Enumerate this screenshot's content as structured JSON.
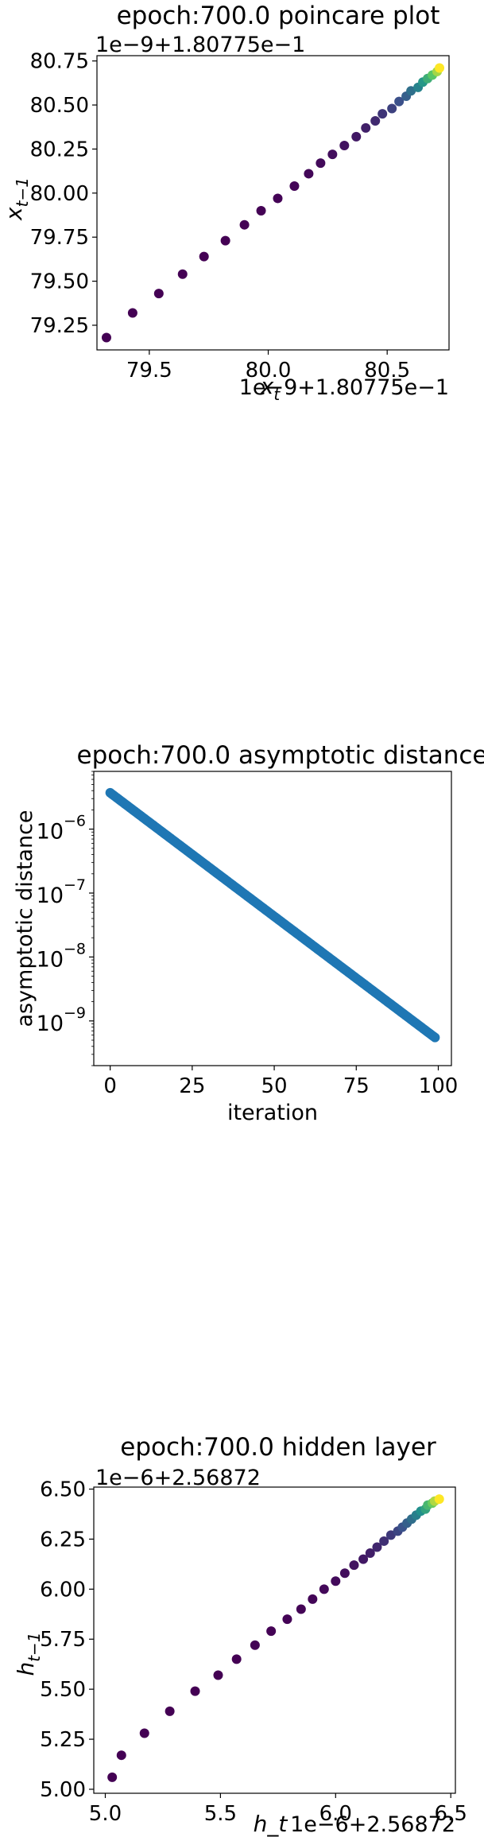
{
  "chart_data": [
    {
      "type": "scatter",
      "title": "epoch:700.0 poincare plot",
      "xlabel": "x_t",
      "ylabel": "x_{t-1}",
      "x_offset_label": "1e−9+1.80775e−1",
      "y_offset_label": "1e−9+1.80775e−1",
      "xlim": [
        79.28,
        80.76
      ],
      "ylim": [
        79.11,
        80.78
      ],
      "xticks": [
        79.5,
        80.0,
        80.5
      ],
      "xtick_labels": [
        "79.5",
        "80.0",
        "80.5"
      ],
      "yticks": [
        79.25,
        79.5,
        79.75,
        80.0,
        80.25,
        80.5,
        80.75
      ],
      "ytick_labels": [
        "79.25",
        "79.50",
        "79.75",
        "80.00",
        "80.25",
        "80.50",
        "80.75"
      ],
      "colormap": [
        "#440154",
        "#3b528b",
        "#21918c",
        "#5ec962",
        "#fde725"
      ],
      "points": {
        "x": [
          79.32,
          79.43,
          79.54,
          79.64,
          79.73,
          79.82,
          79.9,
          79.97,
          80.04,
          80.11,
          80.17,
          80.22,
          80.27,
          80.32,
          80.37,
          80.41,
          80.45,
          80.48,
          80.52,
          80.55,
          80.58,
          80.6,
          80.63,
          80.65,
          80.67,
          80.69,
          80.71,
          80.72
        ],
        "y": [
          79.18,
          79.32,
          79.43,
          79.54,
          79.64,
          79.73,
          79.82,
          79.9,
          79.97,
          80.04,
          80.11,
          80.17,
          80.22,
          80.27,
          80.32,
          80.37,
          80.41,
          80.45,
          80.48,
          80.52,
          80.55,
          80.58,
          80.6,
          80.63,
          80.65,
          80.67,
          80.69,
          80.71
        ]
      },
      "grid": false
    },
    {
      "type": "scatter",
      "title": "epoch:700.0 asymptotic distance",
      "xlabel": "iteration",
      "ylabel": "asymptotic distance",
      "yscale": "log",
      "xlim": [
        -5,
        104
      ],
      "ylim": [
        2e-10,
        8e-06
      ],
      "xticks": [
        0,
        25,
        50,
        75,
        100
      ],
      "xtick_labels": [
        "0",
        "25",
        "50",
        "75",
        "100"
      ],
      "yticks": [
        1e-06,
        1e-07,
        1e-08,
        1e-09
      ],
      "ytick_labels": [
        "10",
        "10",
        "10",
        "10"
      ],
      "ytick_exponents": [
        "−6",
        "−7",
        "−8",
        "−9"
      ],
      "color": "#1f77b4",
      "points": {
        "x_start": 0,
        "x_end": 99,
        "y_start": 3.7e-06,
        "y_end": 5.5e-10
      },
      "grid": false
    },
    {
      "type": "scatter",
      "title": "epoch:700.0 hidden layer",
      "xlabel": "h_t",
      "ylabel": "h_{t-1}",
      "x_offset_label": "1e−6+2.56872",
      "y_offset_label": "1e−6+2.56872",
      "xlim": [
        4.95,
        6.52
      ],
      "ylim": [
        4.98,
        6.51
      ],
      "xticks": [
        5.0,
        5.5,
        6.0,
        6.5
      ],
      "xtick_labels": [
        "5.0",
        "5.5",
        "6.0",
        "6.5"
      ],
      "yticks": [
        5.0,
        5.25,
        5.5,
        5.75,
        6.0,
        6.25,
        6.5
      ],
      "ytick_labels": [
        "5.00",
        "5.25",
        "5.50",
        "5.75",
        "6.00",
        "6.25",
        "6.50"
      ],
      "colormap": [
        "#440154",
        "#3b528b",
        "#21918c",
        "#5ec962",
        "#fde725"
      ],
      "points": {
        "x": [
          5.03,
          5.07,
          5.17,
          5.28,
          5.39,
          5.49,
          5.57,
          5.65,
          5.72,
          5.79,
          5.85,
          5.9,
          5.95,
          6.0,
          6.04,
          6.08,
          6.12,
          6.15,
          6.18,
          6.21,
          6.24,
          6.27,
          6.29,
          6.31,
          6.33,
          6.35,
          6.37,
          6.39,
          6.4,
          6.42,
          6.43,
          6.45
        ],
        "y": [
          5.06,
          5.17,
          5.28,
          5.39,
          5.49,
          5.57,
          5.65,
          5.72,
          5.79,
          5.85,
          5.9,
          5.95,
          6.0,
          6.04,
          6.08,
          6.12,
          6.15,
          6.18,
          6.21,
          6.24,
          6.27,
          6.29,
          6.31,
          6.33,
          6.35,
          6.37,
          6.39,
          6.4,
          6.42,
          6.43,
          6.44,
          6.45
        ]
      },
      "grid": false
    }
  ]
}
